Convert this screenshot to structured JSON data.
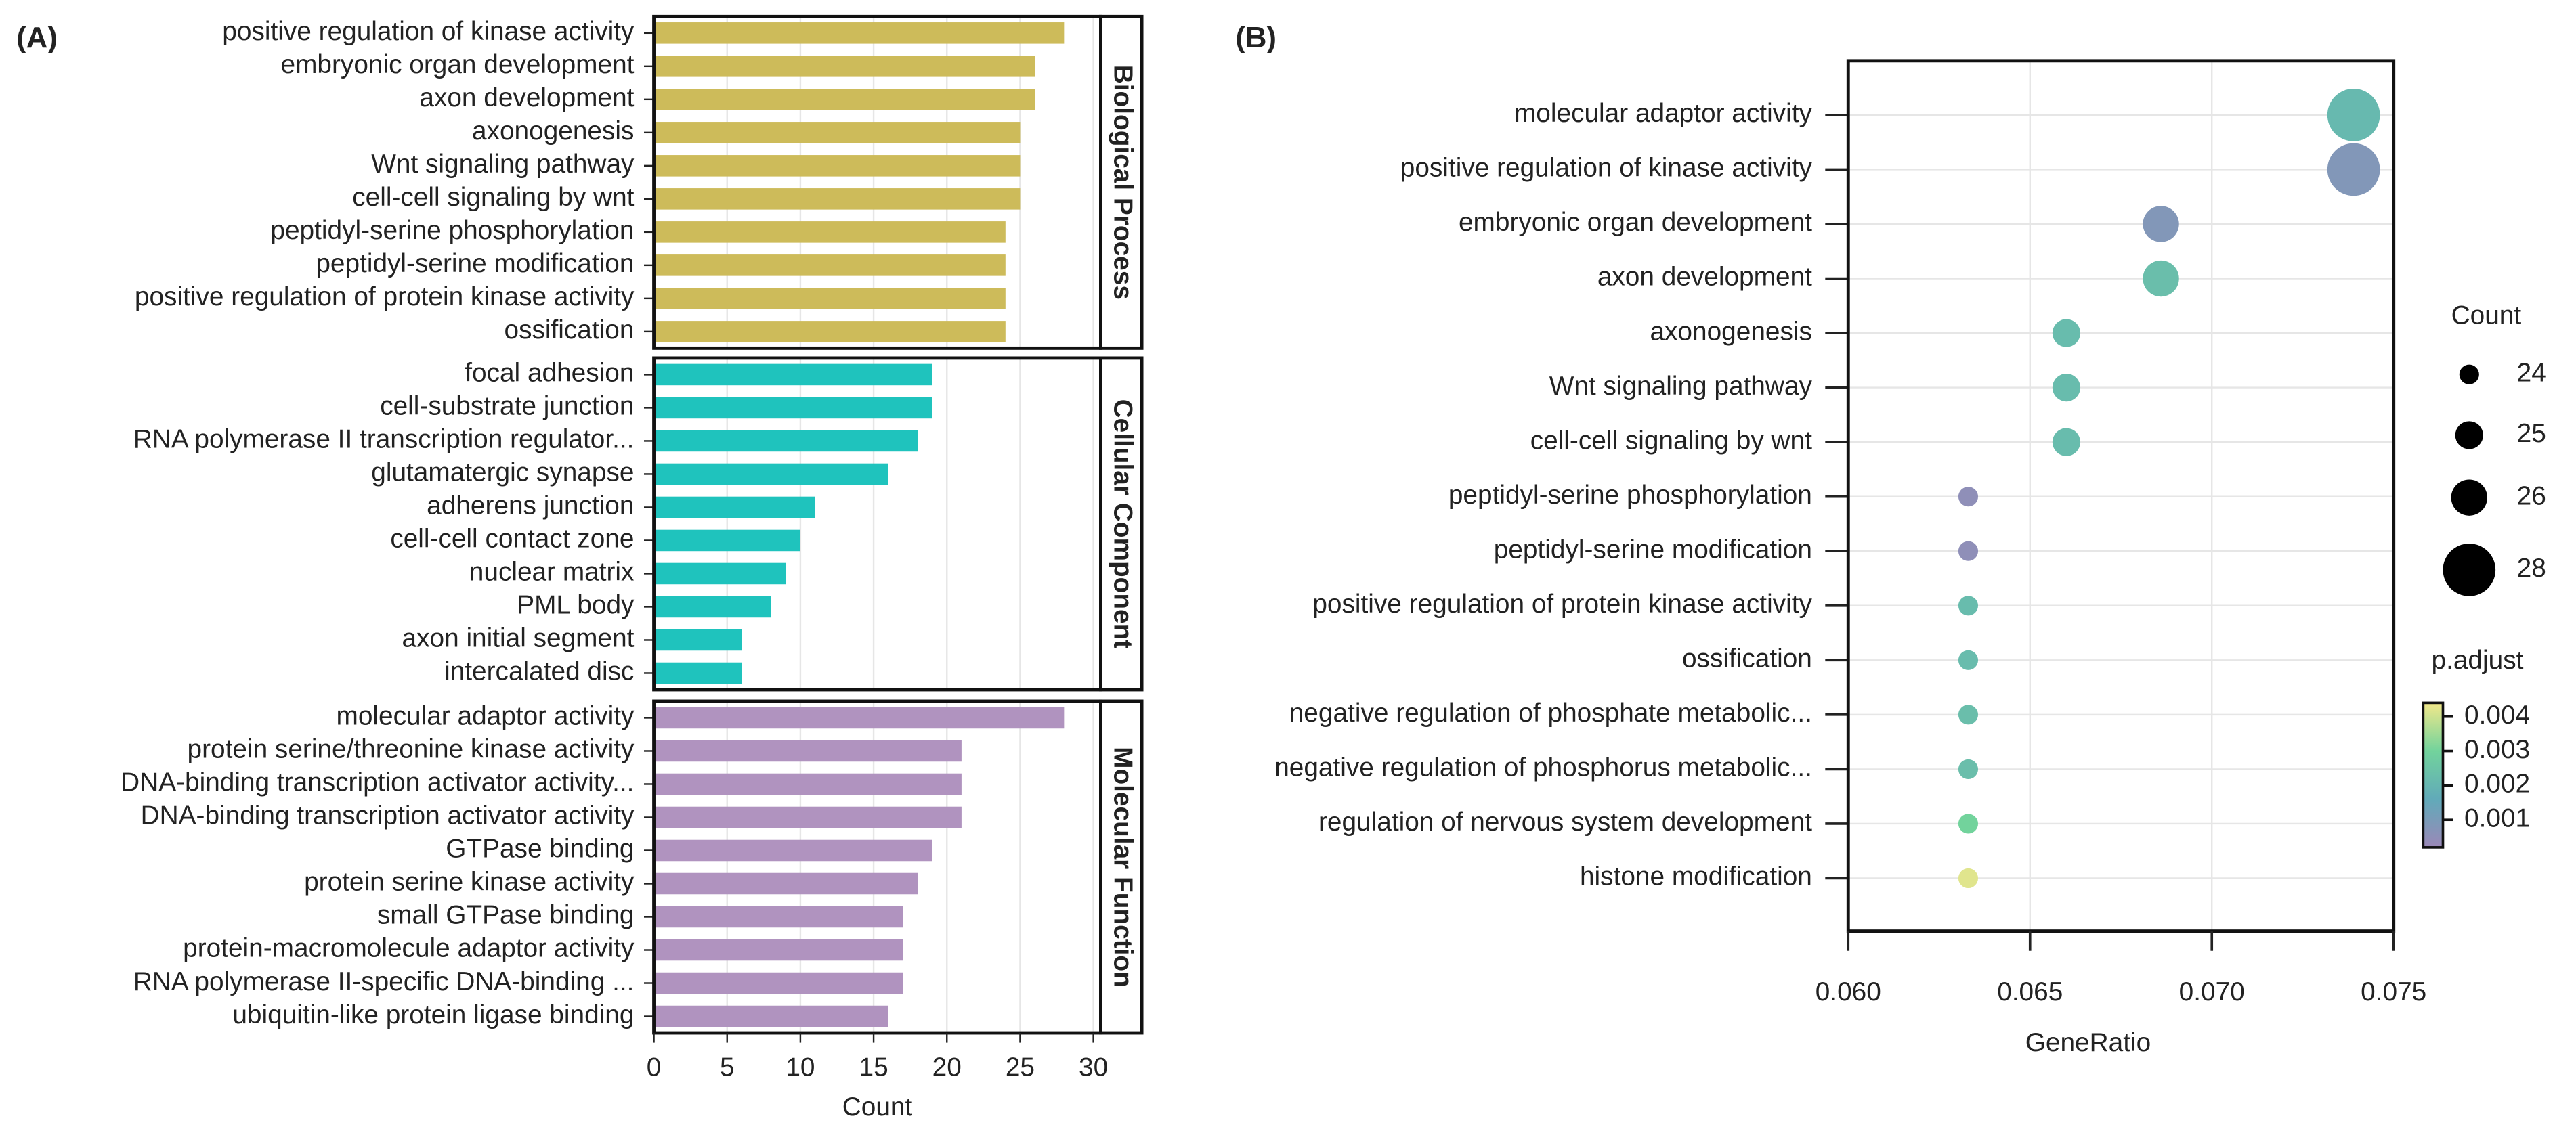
{
  "chart_data": [
    {
      "type": "bar",
      "panel_label": "(A)",
      "orientation": "horizontal",
      "xlabel": "Count",
      "xlim": [
        0,
        30.5
      ],
      "xticks": [
        0,
        5,
        10,
        15,
        20,
        25,
        30
      ],
      "grid": true,
      "facets": [
        {
          "name": "Biological Process",
          "color": "#cdbb5a",
          "categories": [
            "positive regulation of kinase activity",
            "embryonic organ development",
            "axon development",
            "axonogenesis",
            "Wnt signaling pathway",
            "cell-cell signaling by wnt",
            "peptidyl-serine phosphorylation",
            "peptidyl-serine modification",
            "positive regulation of protein kinase activity",
            "ossification"
          ],
          "values": [
            28,
            26,
            26,
            25,
            25,
            25,
            24,
            24,
            24,
            24
          ]
        },
        {
          "name": "Cellular Component",
          "color": "#1fc3bd",
          "categories": [
            "focal adhesion",
            "cell-substrate junction",
            "RNA polymerase II transcription regulator...",
            "glutamatergic synapse",
            "adherens junction",
            "cell-cell contact zone",
            "nuclear matrix",
            "PML body",
            "axon initial segment",
            "intercalated disc"
          ],
          "values": [
            19,
            19,
            18,
            16,
            11,
            10,
            9,
            8,
            6,
            6
          ]
        },
        {
          "name": "Molecular Function",
          "color": "#b093bf",
          "categories": [
            "molecular adaptor activity",
            "protein serine/threonine kinase activity",
            "DNA-binding transcription activator activity...",
            "DNA-binding transcription activator activity",
            "GTPase binding",
            "protein serine kinase activity",
            "small GTPase binding",
            "protein-macromolecule adaptor activity",
            "RNA polymerase II-specific DNA-binding ...",
            "ubiquitin-like protein ligase binding"
          ],
          "values": [
            28,
            21,
            21,
            21,
            19,
            18,
            17,
            17,
            17,
            16
          ]
        }
      ]
    },
    {
      "type": "scatter",
      "panel_label": "(B)",
      "xlabel": "GeneRatio",
      "xlim": [
        0.06,
        0.075
      ],
      "xticks": [
        {
          "value": 0.06,
          "label": "0.060"
        },
        0.065,
        {
          "value": 0.07,
          "label": "0.070"
        },
        0.075
      ],
      "grid": true,
      "categories": [
        "molecular adaptor activity",
        "positive regulation of kinase activity",
        "embryonic organ development",
        "axon development",
        "axonogenesis",
        "Wnt signaling pathway",
        "cell-cell signaling by wnt",
        "peptidyl-serine phosphorylation",
        "peptidyl-serine modification",
        "positive regulation of protein kinase activity",
        "ossification",
        "negative regulation of phosphate metabolic...",
        "negative regulation of phosphorus metabolic...",
        "regulation of nervous system development",
        "histone modification"
      ],
      "x": [
        0.0739,
        0.0739,
        0.0686,
        0.0686,
        0.066,
        0.066,
        0.066,
        0.0633,
        0.0633,
        0.0633,
        0.0633,
        0.0633,
        0.0633,
        0.0633,
        0.0633
      ],
      "size": {
        "title": "Count",
        "values": [
          28,
          28,
          26,
          26,
          25,
          25,
          25,
          24,
          24,
          24,
          24,
          24,
          24,
          24,
          24
        ],
        "legend_ticks": [
          24,
          25,
          26,
          28
        ],
        "range": [
          24,
          28
        ]
      },
      "color": {
        "title": "p.adjust",
        "values": [
          0.0021,
          0.0008,
          0.0008,
          0.0023,
          0.0022,
          0.0022,
          0.0022,
          0.0005,
          0.0005,
          0.0022,
          0.0022,
          0.0023,
          0.0023,
          0.003,
          0.0042
        ],
        "ticks": [
          0.001,
          0.002,
          0.003,
          0.004
        ],
        "lim": [
          0.0002,
          0.0044
        ],
        "colormap": [
          "#9b88b8",
          "#61aab9",
          "#72d39c",
          "#f2e88a"
        ]
      }
    }
  ]
}
